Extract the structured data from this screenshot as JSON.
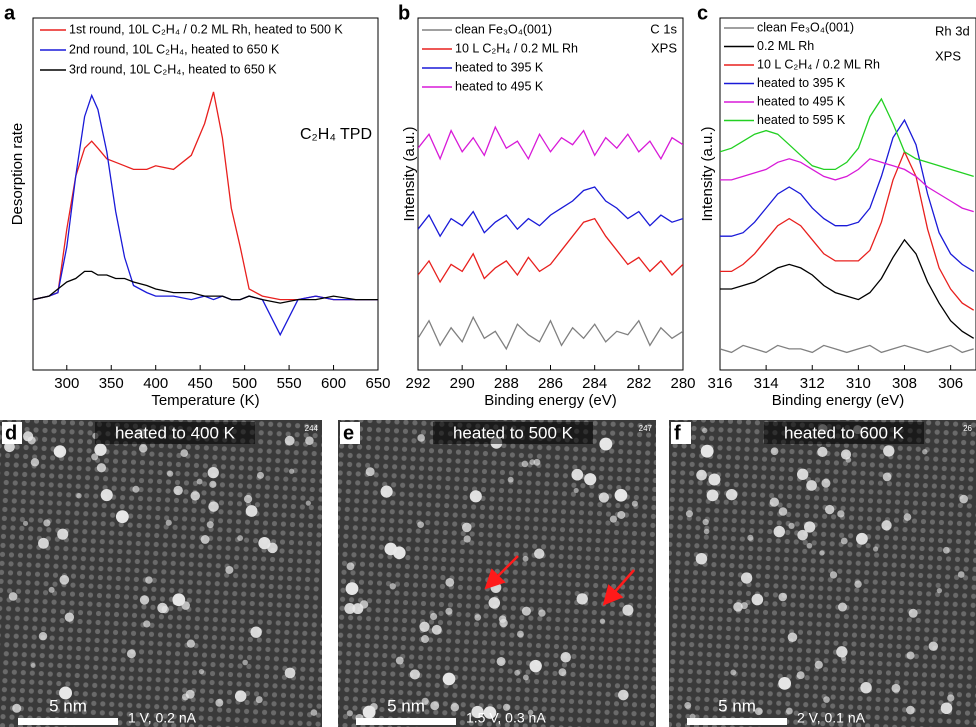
{
  "chart_data": [
    {
      "type": "line",
      "panel_label": "a",
      "xlabel": "Temperature (K)",
      "ylabel": "Desorption rate",
      "annotations": [
        "C₂H₄ TPD"
      ],
      "x": [
        262,
        280,
        290,
        300,
        310,
        320,
        328,
        335,
        345,
        355,
        365,
        375,
        390,
        400,
        420,
        440,
        455,
        465,
        475,
        485,
        495,
        505,
        520,
        540,
        560,
        580,
        600,
        625,
        650
      ],
      "xlim": [
        262,
        650
      ],
      "xticks": [
        300,
        350,
        400,
        450,
        500,
        550,
        600,
        650
      ],
      "ylim": [
        0,
        100
      ],
      "series": [
        {
          "name": "1st round, 10L C₂H₄ / 0.2 ML Rh, heated to 500 K",
          "color": "#e8201e",
          "values": [
            20,
            21,
            22,
            40,
            55,
            63,
            65,
            63,
            60,
            59,
            58,
            57,
            57,
            58,
            57,
            61,
            70,
            79,
            66,
            46,
            35,
            23,
            21,
            20,
            20,
            21,
            20,
            20,
            20
          ]
        },
        {
          "name": "2nd round, 10L C₂H₄, heated to 650 K",
          "color": "#1a1ad8",
          "values": [
            20,
            21,
            22,
            35,
            55,
            72,
            78,
            74,
            62,
            45,
            32,
            24,
            22,
            21,
            21,
            20,
            21,
            20,
            21,
            20,
            20,
            21,
            20,
            10,
            20,
            21,
            20,
            20,
            20
          ]
        },
        {
          "name": "3rd round, 10L C₂H₄, heated to 650 K",
          "color": "#000000",
          "values": [
            20,
            21,
            23,
            25,
            26,
            28,
            28,
            27,
            27,
            26,
            26,
            25,
            24,
            23,
            22,
            22,
            21,
            21,
            21,
            20,
            20,
            21,
            20,
            19,
            20,
            20,
            21,
            20,
            20
          ]
        }
      ]
    },
    {
      "type": "line",
      "panel_label": "b",
      "xlabel": "Binding energy (eV)",
      "ylabel": "Intensity (a.u.)",
      "annotations": [
        "C 1s",
        "XPS"
      ],
      "x": [
        292,
        291.5,
        291,
        290.5,
        290,
        289.5,
        289,
        288.5,
        288,
        287.5,
        287,
        286.5,
        286,
        285.5,
        285,
        284.5,
        284,
        283.5,
        283,
        282.5,
        282,
        281.5,
        281,
        280.5,
        280
      ],
      "xlim": [
        292,
        280
      ],
      "xticks": [
        292,
        290,
        288,
        286,
        284,
        282,
        280
      ],
      "ylim": [
        0,
        100
      ],
      "series": [
        {
          "name": "clean Fe₃O₄(001)",
          "color": "#808080",
          "values": [
            9,
            14,
            7,
            12,
            8,
            15,
            9,
            11,
            6,
            13,
            10,
            8,
            14,
            7,
            12,
            9,
            13,
            8,
            11,
            10,
            14,
            7,
            12,
            9,
            11
          ]
        },
        {
          "name": "10 L C₂H₄ / 0.2 ML Rh",
          "color": "#e8201e",
          "values": [
            27,
            31,
            25,
            30,
            28,
            33,
            26,
            29,
            31,
            27,
            32,
            28,
            30,
            34,
            38,
            42,
            43,
            38,
            34,
            30,
            32,
            28,
            31,
            27,
            30
          ]
        },
        {
          "name": "heated to 395 K",
          "color": "#1a1ad8",
          "values": [
            40,
            44,
            38,
            43,
            41,
            45,
            39,
            42,
            44,
            40,
            43,
            41,
            44,
            46,
            48,
            51,
            52,
            48,
            46,
            43,
            45,
            41,
            44,
            42,
            43
          ]
        },
        {
          "name": "heated to 495 K",
          "color": "#d81ad8",
          "values": [
            63,
            67,
            60,
            68,
            62,
            66,
            61,
            69,
            63,
            65,
            60,
            67,
            62,
            66,
            64,
            68,
            61,
            66,
            63,
            67,
            62,
            65,
            60,
            66,
            64
          ]
        }
      ]
    },
    {
      "type": "line",
      "panel_label": "c",
      "xlabel": "Binding energy (eV)",
      "ylabel": "Intensity (a.u.)",
      "annotations": [
        "Rh 3d",
        "XPS"
      ],
      "x": [
        316,
        315.5,
        315,
        314.5,
        314,
        313.5,
        313,
        312.5,
        312,
        311.5,
        311,
        310.5,
        310,
        309.5,
        309,
        308.5,
        308,
        307.5,
        307,
        306.5,
        306,
        305.5,
        305
      ],
      "xlim": [
        316,
        304.9
      ],
      "xticks": [
        316,
        314,
        312,
        310,
        308,
        306
      ],
      "ylim": [
        0,
        100
      ],
      "series": [
        {
          "name": "clean Fe₃O₄(001)",
          "color": "#808080",
          "values": [
            6,
            5,
            7,
            6,
            5,
            7,
            6,
            6,
            5,
            7,
            6,
            5,
            6,
            7,
            5,
            6,
            7,
            6,
            5,
            6,
            7,
            5,
            6
          ]
        },
        {
          "name": "0.2 ML Rh",
          "color": "#000000",
          "values": [
            23,
            23,
            24,
            25,
            27,
            29,
            30,
            29,
            27,
            24,
            22,
            21,
            20,
            22,
            26,
            32,
            37,
            33,
            25,
            19,
            14,
            11,
            9
          ]
        },
        {
          "name": "10 L C₂H₄ / 0.2 ML Rh",
          "color": "#e8201e",
          "values": [
            28,
            28,
            30,
            33,
            37,
            41,
            43,
            41,
            37,
            33,
            31,
            31,
            31,
            34,
            42,
            54,
            62,
            55,
            40,
            29,
            23,
            19,
            17
          ]
        },
        {
          "name": "heated to 395 K",
          "color": "#1a1ad8",
          "values": [
            38,
            38,
            39,
            42,
            46,
            50,
            52,
            50,
            46,
            43,
            41,
            41,
            42,
            46,
            55,
            66,
            71,
            64,
            50,
            39,
            33,
            30,
            28
          ]
        },
        {
          "name": "heated to 495 K",
          "color": "#d81ad8",
          "values": [
            54,
            54,
            55,
            56,
            57,
            59,
            60,
            59,
            57,
            55,
            54,
            55,
            57,
            60,
            59,
            58,
            57,
            55,
            52,
            50,
            48,
            46,
            45
          ]
        },
        {
          "name": "heated to 595 K",
          "color": "#22d022",
          "values": [
            62,
            63,
            65,
            67,
            68,
            67,
            64,
            61,
            58,
            57,
            57,
            59,
            63,
            72,
            77,
            70,
            62,
            60,
            59,
            58,
            57,
            56,
            55
          ]
        }
      ]
    }
  ],
  "images": [
    {
      "panel_label": "d",
      "title": "heated to 400 K",
      "index": "244",
      "scale": "5 nm",
      "params": "1 V, 0.2 nA"
    },
    {
      "panel_label": "e",
      "title": "heated to 500 K",
      "index": "247",
      "scale": "5 nm",
      "params": "1.5 V, 0.3 nA"
    },
    {
      "panel_label": "f",
      "title": "heated to 600 K",
      "index": "26",
      "scale": "5 nm",
      "params": "2 V, 0.1 nA"
    }
  ]
}
